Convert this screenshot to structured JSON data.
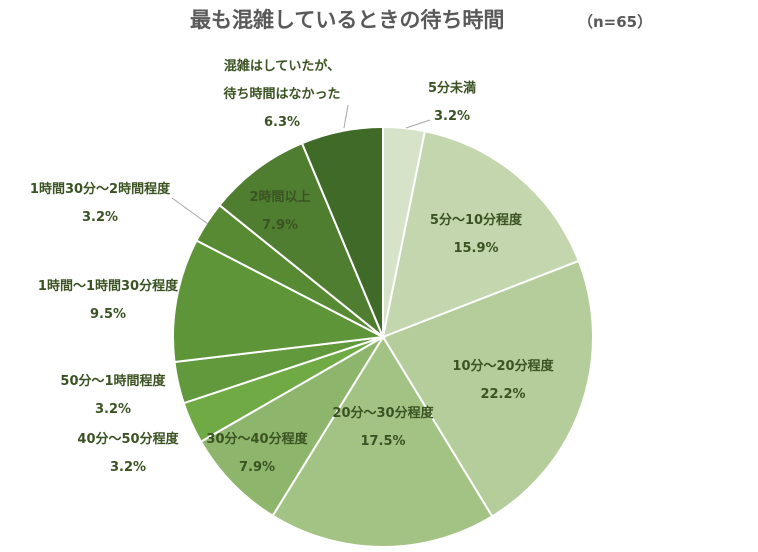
{
  "chart_data": {
    "type": "pie",
    "title": "最も混雑しているときの待ち時間",
    "subtitle": "（n=65）",
    "slices": [
      {
        "label": "5分未満",
        "value": 3.2,
        "value_label": "3.2%",
        "color": "#d6e3c8"
      },
      {
        "label": "5分～10分程度",
        "value": 15.9,
        "value_label": "15.9%",
        "color": "#c3d6ad"
      },
      {
        "label": "10分～20分程度",
        "value": 22.2,
        "value_label": "22.2%",
        "color": "#b5cd9a"
      },
      {
        "label": "20分～30分程度",
        "value": 17.5,
        "value_label": "17.5%",
        "color": "#a3c384"
      },
      {
        "label": "30分～40分程度",
        "value": 7.9,
        "value_label": "7.9%",
        "color": "#8db56b"
      },
      {
        "label": "40分～50分程度",
        "value": 3.2,
        "value_label": "3.2%",
        "color": "#6faa44"
      },
      {
        "label": "50分～1時間程度",
        "value": 3.2,
        "value_label": "3.2%",
        "color": "#62993d"
      },
      {
        "label": "1時間～1時間30分程度",
        "value": 9.5,
        "value_label": "9.5%",
        "color": "#5e9538"
      },
      {
        "label": "1時間30分～2時間程度",
        "value": 3.2,
        "value_label": "3.2%",
        "color": "#578a33"
      },
      {
        "label": "2時間以上",
        "value": 7.9,
        "value_label": "7.9%",
        "color": "#4f7e30"
      },
      {
        "label": "混雑はしていたが、\n待ち時間はなかった",
        "value": 6.3,
        "value_label": "6.3%",
        "color": "#3f6a28"
      }
    ]
  }
}
